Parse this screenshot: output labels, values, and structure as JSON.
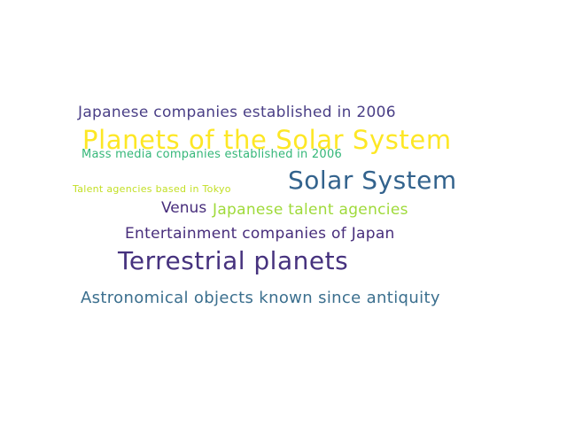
{
  "word_cloud": {
    "words": [
      {
        "text": "Japanese companies established in 2006",
        "color": "#4a3f86"
      },
      {
        "text": "Planets of the Solar System",
        "color": "#fde725"
      },
      {
        "text": "Mass media companies established in 2006",
        "color": "#35b779"
      },
      {
        "text": "Talent agencies based in Tokyo",
        "color": "#c2df23"
      },
      {
        "text": "Solar System",
        "color": "#33638d"
      },
      {
        "text": "Venus",
        "color": "#472d7b"
      },
      {
        "text": "Japanese talent agencies",
        "color": "#9fda3a"
      },
      {
        "text": "Entertainment companies of Japan",
        "color": "#472d7b"
      },
      {
        "text": "Terrestrial planets",
        "color": "#46327e"
      },
      {
        "text": "Astronomical objects known since antiquity",
        "color": "#3b6f8e"
      }
    ]
  }
}
